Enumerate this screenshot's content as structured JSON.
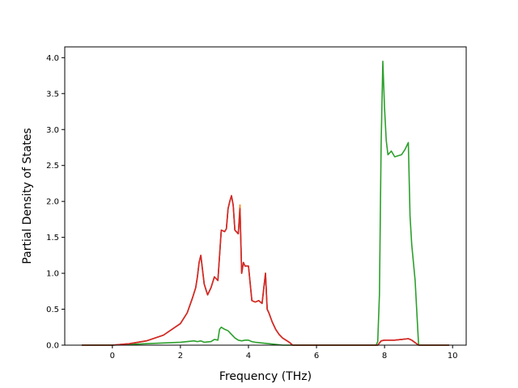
{
  "chart_data": {
    "type": "line",
    "title": "",
    "xlabel": "Frequency (THz)",
    "ylabel": "Partial Density of States",
    "xlim": [
      -1.4,
      10.4
    ],
    "ylim": [
      0.0,
      4.15
    ],
    "xticks": [
      0,
      2,
      4,
      6,
      8,
      10
    ],
    "yticks": [
      0.0,
      0.5,
      1.0,
      1.5,
      2.0,
      2.5,
      3.0,
      3.5,
      4.0
    ],
    "xtick_labels": [
      "0",
      "2",
      "4",
      "6",
      "8",
      "10"
    ],
    "ytick_labels": [
      "0.0",
      "0.5",
      "1.0",
      "1.5",
      "2.0",
      "2.5",
      "3.0",
      "3.5",
      "4.0"
    ],
    "grid": false,
    "legend": "none",
    "series": [
      {
        "color": "#1f77b4",
        "points": [
          [
            -0.9,
            0.0
          ],
          [
            0.0,
            0.0
          ],
          [
            0.5,
            0.02
          ],
          [
            1.0,
            0.06
          ],
          [
            1.5,
            0.14
          ],
          [
            2.0,
            0.3
          ],
          [
            2.2,
            0.45
          ],
          [
            2.35,
            0.65
          ],
          [
            2.45,
            0.8
          ],
          [
            2.5,
            0.95
          ],
          [
            2.55,
            1.15
          ],
          [
            2.6,
            1.25
          ],
          [
            2.7,
            0.85
          ],
          [
            2.8,
            0.7
          ],
          [
            2.9,
            0.8
          ],
          [
            3.0,
            0.95
          ],
          [
            3.1,
            0.9
          ],
          [
            3.2,
            1.6
          ],
          [
            3.3,
            1.58
          ],
          [
            3.35,
            1.62
          ],
          [
            3.4,
            1.9
          ],
          [
            3.45,
            2.0
          ],
          [
            3.5,
            2.08
          ],
          [
            3.55,
            1.95
          ],
          [
            3.6,
            1.6
          ],
          [
            3.7,
            1.55
          ],
          [
            3.75,
            1.9
          ],
          [
            3.8,
            1.0
          ],
          [
            3.85,
            1.15
          ],
          [
            3.9,
            1.1
          ],
          [
            4.0,
            1.1
          ],
          [
            4.1,
            0.62
          ],
          [
            4.2,
            0.6
          ],
          [
            4.3,
            0.62
          ],
          [
            4.4,
            0.58
          ],
          [
            4.5,
            1.0
          ],
          [
            4.55,
            0.5
          ],
          [
            4.6,
            0.45
          ],
          [
            4.7,
            0.32
          ],
          [
            4.8,
            0.22
          ],
          [
            4.9,
            0.15
          ],
          [
            5.0,
            0.1
          ],
          [
            5.2,
            0.04
          ],
          [
            5.3,
            0.0
          ],
          [
            7.8,
            0.0
          ],
          [
            7.9,
            0.06
          ],
          [
            8.0,
            0.07
          ],
          [
            8.3,
            0.07
          ],
          [
            8.5,
            0.08
          ],
          [
            8.7,
            0.09
          ],
          [
            8.8,
            0.07
          ],
          [
            9.0,
            0.0
          ],
          [
            9.9,
            0.0
          ]
        ]
      },
      {
        "color": "#ff7f0e",
        "points": [
          [
            -0.9,
            0.0
          ],
          [
            0.0,
            0.0
          ],
          [
            0.5,
            0.02
          ],
          [
            1.0,
            0.06
          ],
          [
            1.5,
            0.14
          ],
          [
            2.0,
            0.3
          ],
          [
            2.2,
            0.45
          ],
          [
            2.35,
            0.65
          ],
          [
            2.45,
            0.8
          ],
          [
            2.5,
            0.95
          ],
          [
            2.55,
            1.15
          ],
          [
            2.6,
            1.25
          ],
          [
            2.7,
            0.85
          ],
          [
            2.8,
            0.7
          ],
          [
            2.9,
            0.8
          ],
          [
            3.0,
            0.95
          ],
          [
            3.1,
            0.9
          ],
          [
            3.2,
            1.6
          ],
          [
            3.3,
            1.58
          ],
          [
            3.35,
            1.62
          ],
          [
            3.4,
            1.9
          ],
          [
            3.45,
            2.0
          ],
          [
            3.5,
            2.08
          ],
          [
            3.55,
            1.95
          ],
          [
            3.6,
            1.6
          ],
          [
            3.7,
            1.55
          ],
          [
            3.75,
            1.95
          ],
          [
            3.8,
            1.0
          ],
          [
            3.85,
            1.15
          ],
          [
            3.9,
            1.1
          ],
          [
            4.0,
            1.1
          ],
          [
            4.1,
            0.62
          ],
          [
            4.2,
            0.6
          ],
          [
            4.3,
            0.62
          ],
          [
            4.4,
            0.58
          ],
          [
            4.5,
            1.0
          ],
          [
            4.55,
            0.5
          ],
          [
            4.6,
            0.45
          ],
          [
            4.7,
            0.32
          ],
          [
            4.8,
            0.22
          ],
          [
            4.9,
            0.15
          ],
          [
            5.0,
            0.1
          ],
          [
            5.2,
            0.04
          ],
          [
            5.3,
            0.0
          ],
          [
            7.8,
            0.0
          ],
          [
            7.9,
            0.06
          ],
          [
            8.0,
            0.07
          ],
          [
            8.3,
            0.07
          ],
          [
            8.5,
            0.08
          ],
          [
            8.7,
            0.09
          ],
          [
            8.8,
            0.07
          ],
          [
            9.0,
            0.0
          ],
          [
            9.9,
            0.0
          ]
        ]
      },
      {
        "color": "#2ca02c",
        "points": [
          [
            -0.9,
            0.0
          ],
          [
            0.0,
            0.0
          ],
          [
            1.0,
            0.02
          ],
          [
            2.0,
            0.04
          ],
          [
            2.4,
            0.06
          ],
          [
            2.5,
            0.05
          ],
          [
            2.6,
            0.06
          ],
          [
            2.7,
            0.04
          ],
          [
            2.9,
            0.05
          ],
          [
            3.0,
            0.08
          ],
          [
            3.1,
            0.07
          ],
          [
            3.15,
            0.22
          ],
          [
            3.2,
            0.25
          ],
          [
            3.3,
            0.22
          ],
          [
            3.4,
            0.2
          ],
          [
            3.5,
            0.15
          ],
          [
            3.6,
            0.1
          ],
          [
            3.7,
            0.07
          ],
          [
            3.8,
            0.06
          ],
          [
            3.9,
            0.07
          ],
          [
            4.0,
            0.07
          ],
          [
            4.1,
            0.05
          ],
          [
            4.2,
            0.04
          ],
          [
            4.4,
            0.03
          ],
          [
            4.6,
            0.02
          ],
          [
            4.8,
            0.01
          ],
          [
            5.0,
            0.0
          ],
          [
            7.75,
            0.0
          ],
          [
            7.8,
            0.05
          ],
          [
            7.85,
            0.7
          ],
          [
            7.9,
            2.8
          ],
          [
            7.95,
            3.95
          ],
          [
            8.0,
            3.3
          ],
          [
            8.05,
            2.85
          ],
          [
            8.1,
            2.65
          ],
          [
            8.2,
            2.7
          ],
          [
            8.3,
            2.62
          ],
          [
            8.5,
            2.65
          ],
          [
            8.6,
            2.72
          ],
          [
            8.7,
            2.82
          ],
          [
            8.75,
            1.8
          ],
          [
            8.8,
            1.4
          ],
          [
            8.9,
            0.9
          ],
          [
            9.0,
            0.0
          ],
          [
            9.9,
            0.0
          ]
        ]
      },
      {
        "color": "#d62728",
        "points": [
          [
            -0.9,
            0.0
          ],
          [
            0.0,
            0.0
          ],
          [
            0.5,
            0.02
          ],
          [
            1.0,
            0.06
          ],
          [
            1.5,
            0.14
          ],
          [
            2.0,
            0.3
          ],
          [
            2.2,
            0.45
          ],
          [
            2.35,
            0.65
          ],
          [
            2.45,
            0.8
          ],
          [
            2.5,
            0.95
          ],
          [
            2.55,
            1.15
          ],
          [
            2.6,
            1.25
          ],
          [
            2.7,
            0.85
          ],
          [
            2.8,
            0.7
          ],
          [
            2.9,
            0.8
          ],
          [
            3.0,
            0.95
          ],
          [
            3.1,
            0.9
          ],
          [
            3.2,
            1.6
          ],
          [
            3.3,
            1.58
          ],
          [
            3.35,
            1.62
          ],
          [
            3.4,
            1.9
          ],
          [
            3.45,
            2.0
          ],
          [
            3.5,
            2.08
          ],
          [
            3.55,
            1.95
          ],
          [
            3.6,
            1.6
          ],
          [
            3.7,
            1.55
          ],
          [
            3.75,
            1.9
          ],
          [
            3.8,
            1.0
          ],
          [
            3.85,
            1.15
          ],
          [
            3.9,
            1.1
          ],
          [
            4.0,
            1.1
          ],
          [
            4.1,
            0.62
          ],
          [
            4.2,
            0.6
          ],
          [
            4.3,
            0.62
          ],
          [
            4.4,
            0.58
          ],
          [
            4.5,
            1.0
          ],
          [
            4.55,
            0.5
          ],
          [
            4.6,
            0.45
          ],
          [
            4.7,
            0.32
          ],
          [
            4.8,
            0.22
          ],
          [
            4.9,
            0.15
          ],
          [
            5.0,
            0.1
          ],
          [
            5.2,
            0.04
          ],
          [
            5.3,
            0.0
          ],
          [
            7.8,
            0.0
          ],
          [
            7.9,
            0.06
          ],
          [
            8.0,
            0.07
          ],
          [
            8.3,
            0.07
          ],
          [
            8.5,
            0.08
          ],
          [
            8.7,
            0.09
          ],
          [
            8.8,
            0.07
          ],
          [
            9.0,
            0.0
          ],
          [
            9.9,
            0.0
          ]
        ]
      }
    ]
  }
}
